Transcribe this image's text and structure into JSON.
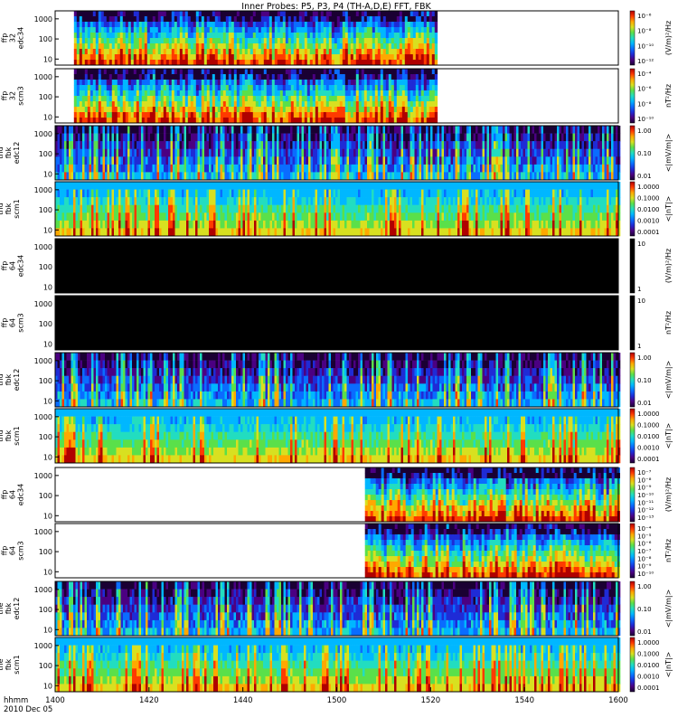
{
  "title": "Inner Probes: P5, P3, P4 (TH-A,D,E) FFT, FBK",
  "time_axis": {
    "unit_label": "hhmm",
    "date_label": "2010 Dec 05",
    "tick_labels": [
      "1400",
      "1420",
      "1440",
      "1500",
      "1520",
      "1540",
      "1600"
    ],
    "range": [
      "1400",
      "1600"
    ]
  },
  "colors": {
    "no_data": "#ffffff",
    "fill_value": "#000000",
    "colormap": [
      "#1a0033",
      "#4b0082",
      "#1f2bd6",
      "#0a6cff",
      "#00b7ff",
      "#22ddc0",
      "#5ae04a",
      "#d8e020",
      "#ffa800",
      "#ff3a00",
      "#b00000"
    ]
  },
  "chart_data": [
    {
      "type": "heatmap",
      "ylabel": "tha ffp 32 edc34",
      "y_log": true,
      "yticks": [
        "10",
        "100",
        "1000"
      ],
      "data_range": [
        "1404",
        "1521"
      ],
      "colorbar": {
        "label": "(V/m)²/Hz",
        "ticks": [
          "10⁻⁶",
          "10⁻⁸",
          "10⁻¹⁰",
          "10⁻¹²"
        ]
      }
    },
    {
      "type": "heatmap",
      "ylabel": "tha ffp 32 scm3",
      "y_log": true,
      "yticks": [
        "10",
        "100",
        "1000"
      ],
      "data_range": [
        "1404",
        "1521"
      ],
      "colorbar": {
        "label": "nT²/Hz",
        "ticks": [
          "10⁻⁴",
          "10⁻⁶",
          "10⁻⁸",
          "10⁻¹⁰"
        ]
      }
    },
    {
      "type": "heatmap",
      "ylabel": "thd fbk edc12",
      "y_log": true,
      "yticks": [
        "10",
        "100",
        "1000"
      ],
      "data_range": [
        "1400",
        "1600"
      ],
      "colorbar": {
        "label": "<|mV/m|>",
        "ticks": [
          "1.00",
          "0.10",
          "0.01"
        ]
      }
    },
    {
      "type": "heatmap",
      "ylabel": "thd fbk scm1",
      "y_log": true,
      "yticks": [
        "10",
        "100",
        "1000"
      ],
      "data_range": [
        "1400",
        "1600"
      ],
      "colorbar": {
        "label": "<|nT|>",
        "ticks": [
          "1.0000",
          "0.1000",
          "0.0100",
          "0.0010",
          "0.0001"
        ]
      }
    },
    {
      "type": "heatmap",
      "ylabel": "thd ffp 64 edc34",
      "y_log": true,
      "yticks": [
        "10",
        "100",
        "1000"
      ],
      "data_range": [
        "1400",
        "1600"
      ],
      "fill": true,
      "colorbar": {
        "label": "(V/m)²/Hz",
        "ticks": [
          "10",
          "1"
        ]
      }
    },
    {
      "type": "heatmap",
      "ylabel": "thd ffp 64 scm3",
      "y_log": true,
      "yticks": [
        "10",
        "100",
        "1000"
      ],
      "data_range": [
        "1400",
        "1600"
      ],
      "fill": true,
      "colorbar": {
        "label": "nT²/Hz",
        "ticks": [
          "10",
          "1"
        ]
      }
    },
    {
      "type": "heatmap",
      "ylabel": "thd fbk edc12",
      "y_log": true,
      "yticks": [
        "10",
        "100",
        "1000"
      ],
      "data_range": [
        "1400",
        "1600"
      ],
      "colorbar": {
        "label": "<|mV/m|>",
        "ticks": [
          "1.00",
          "0.10",
          "0.01"
        ]
      }
    },
    {
      "type": "heatmap",
      "ylabel": "thd fbk scm1",
      "y_log": true,
      "yticks": [
        "10",
        "100",
        "1000"
      ],
      "data_range": [
        "1400",
        "1600"
      ],
      "colorbar": {
        "label": "<|nT|>",
        "ticks": [
          "1.0000",
          "0.1000",
          "0.0100",
          "0.0010",
          "0.0001"
        ]
      }
    },
    {
      "type": "heatmap",
      "ylabel": "the ffp 64 edc34",
      "y_log": true,
      "yticks": [
        "10",
        "100",
        "1000"
      ],
      "data_range": [
        "1506",
        "1600"
      ],
      "colorbar": {
        "label": "(V/m)²/Hz",
        "ticks": [
          "10⁻⁷",
          "10⁻⁸",
          "10⁻⁹",
          "10⁻¹⁰",
          "10⁻¹¹",
          "10⁻¹²",
          "10⁻¹³"
        ]
      }
    },
    {
      "type": "heatmap",
      "ylabel": "the ffp 64 scm3",
      "y_log": true,
      "yticks": [
        "10",
        "100",
        "1000"
      ],
      "data_range": [
        "1506",
        "1600"
      ],
      "colorbar": {
        "label": "nT²/Hz",
        "ticks": [
          "10⁻⁴",
          "10⁻⁵",
          "10⁻⁶",
          "10⁻⁷",
          "10⁻⁸",
          "10⁻⁹",
          "10⁻¹⁰"
        ]
      }
    },
    {
      "type": "heatmap",
      "ylabel": "the fbk edc12",
      "y_log": true,
      "yticks": [
        "10",
        "100",
        "1000"
      ],
      "data_range": [
        "1400",
        "1600"
      ],
      "colorbar": {
        "label": "<|mV/m|>",
        "ticks": [
          "1.00",
          "0.10",
          "0.01"
        ]
      }
    },
    {
      "type": "heatmap",
      "ylabel": "the fbk scm1",
      "y_log": true,
      "yticks": [
        "10",
        "100",
        "1000"
      ],
      "data_range": [
        "1400",
        "1600"
      ],
      "colorbar": {
        "label": "<|nT|>",
        "ticks": [
          "1.0000",
          "0.1000",
          "0.0100",
          "0.0010",
          "0.0001"
        ]
      }
    }
  ]
}
